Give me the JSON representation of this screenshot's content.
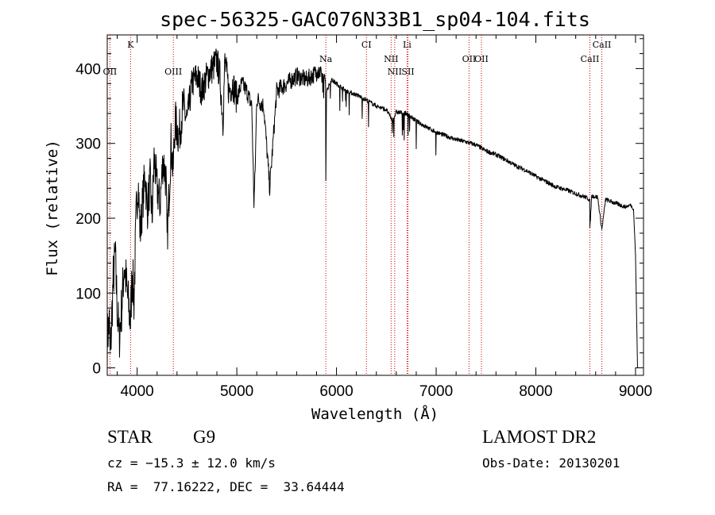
{
  "chart_data": {
    "type": "line",
    "title": "spec-56325-GAC076N33B1_sp04-104.fits",
    "xlabel": "Wavelength (Å)",
    "ylabel": "Flux (relative)",
    "xlim": [
      3700,
      9080
    ],
    "ylim": [
      -10,
      445
    ],
    "xticks": [
      4000,
      5000,
      6000,
      7000,
      8000,
      9000
    ],
    "yticks": [
      0,
      100,
      200,
      300,
      400
    ],
    "grid": false,
    "series": [
      {
        "x": [
          3700,
          3720,
          3730,
          3760,
          3780,
          3800,
          3820,
          3850,
          3870,
          3900,
          3933,
          3950,
          3968,
          3990,
          4010,
          4030,
          4060,
          4080,
          4101,
          4130,
          4150,
          4170,
          4200,
          4230,
          4260,
          4290,
          4300,
          4320,
          4340,
          4360,
          4380,
          4420,
          4460,
          4500,
          4550,
          4600,
          4650,
          4700,
          4750,
          4800,
          4830,
          4861,
          4880,
          4920,
          4960,
          5000,
          5050,
          5100,
          5150,
          5172,
          5183,
          5200,
          5270,
          5330,
          5400,
          5500,
          5600,
          5700,
          5800,
          5850,
          5890,
          5893,
          5900,
          5950,
          6000,
          6100,
          6200,
          6300,
          6400,
          6500,
          6563,
          6600,
          6700,
          6800,
          6900,
          7000,
          7100,
          7200,
          7300,
          7400,
          7500,
          7600,
          7700,
          7800,
          7900,
          8000,
          8100,
          8200,
          8300,
          8400,
          8500,
          8540,
          8542,
          8560,
          8620,
          8662,
          8700,
          8800,
          8900,
          8950,
          8980,
          9000,
          9020
        ],
        "values": [
          40,
          60,
          10,
          120,
          150,
          80,
          40,
          90,
          140,
          100,
          60,
          130,
          90,
          200,
          250,
          180,
          230,
          260,
          210,
          250,
          200,
          280,
          240,
          220,
          280,
          250,
          170,
          230,
          300,
          260,
          330,
          310,
          350,
          330,
          380,
          390,
          370,
          390,
          400,
          410,
          390,
          330,
          410,
          370,
          380,
          360,
          380,
          370,
          350,
          220,
          260,
          360,
          350,
          240,
          370,
          380,
          390,
          385,
          395,
          390,
          380,
          255,
          370,
          385,
          380,
          370,
          365,
          358,
          350,
          345,
          330,
          342,
          340,
          330,
          322,
          315,
          310,
          305,
          302,
          298,
          290,
          285,
          278,
          270,
          264,
          256,
          249,
          242,
          238,
          233,
          228,
          225,
          185,
          230,
          228,
          185,
          225,
          220,
          215,
          218,
          212,
          150,
          0
        ]
      }
    ],
    "line_labels": [
      {
        "name": "K",
        "x": 3934,
        "row": "top"
      },
      {
        "name": "OII",
        "x": 3727,
        "row": "low"
      },
      {
        "name": "OIII",
        "x": 4363,
        "row": "low"
      },
      {
        "name": "Na",
        "x": 5893,
        "row": "mid"
      },
      {
        "name": "CI",
        "x": 6300,
        "row": "top"
      },
      {
        "name": "NII",
        "x": 6548,
        "row": "mid"
      },
      {
        "name": "NII",
        "x": 6584,
        "row": "low"
      },
      {
        "name": "Li",
        "x": 6708,
        "row": "top"
      },
      {
        "name": "SII",
        "x": 6717,
        "row": "low"
      },
      {
        "name": "OII",
        "x": 7330,
        "row": "mid"
      },
      {
        "name": "OII",
        "x": 7454,
        "row": "mid"
      },
      {
        "name": "CaII",
        "x": 8542,
        "row": "mid"
      },
      {
        "name": "CaII",
        "x": 8662,
        "row": "top"
      }
    ]
  },
  "info": {
    "object_type": "STAR",
    "subclass": "G9",
    "survey": "LAMOST DR2",
    "cz": "cz = −15.3 ± 12.0 km/s",
    "obs_date": "Obs-Date: 20130201",
    "coords": "RA =  77.16222, DEC =  33.64444"
  },
  "colors": {
    "spectrum": "#000000",
    "line_markers": "#cc0000",
    "axes": "#000000",
    "background": "#ffffff"
  }
}
